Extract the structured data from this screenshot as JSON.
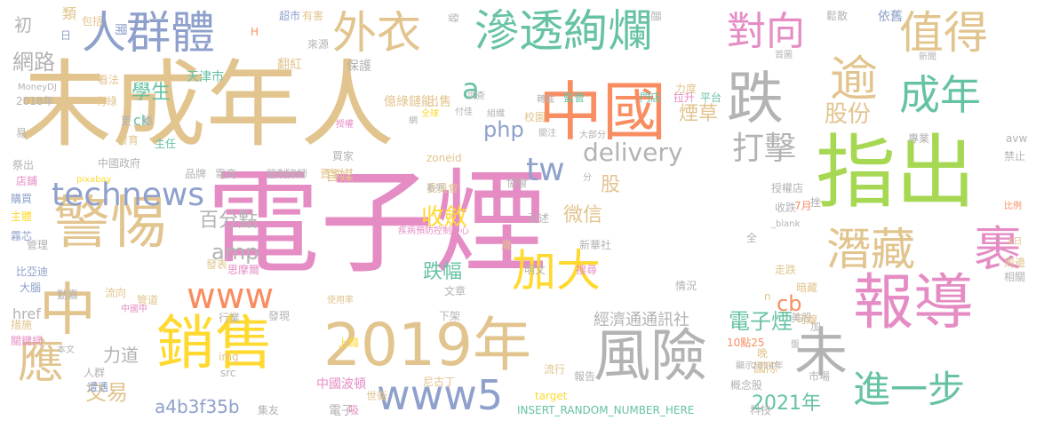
{
  "palette": {
    "pink": "#e58cc4",
    "tan": "#e2c48e",
    "green": "#66c2a5",
    "blue": "#8ea0cb",
    "orange": "#f98d62",
    "yellow": "#ffd92f",
    "lime": "#a7d854",
    "gray": "#b3b3b3"
  },
  "words": [
    "電子煙",
    "未成年人",
    "指出",
    "中國",
    "報導",
    "2019年",
    "銷售",
    "警惕",
    "人群體",
    "滲透絢爛",
    "外衣",
    "跌",
    "逾",
    "值得",
    "成年",
    "中",
    "應",
    "潛藏",
    "裹",
    "風險",
    "未",
    "進一步",
    "technews",
    "www",
    "www5",
    "加大",
    "對向",
    "打擊",
    "tw",
    "php",
    "delivery",
    "a",
    "amp",
    "cb",
    "微信",
    "收斂",
    "跌幅",
    "股份",
    "網路",
    "學生",
    "百分點",
    "經濟通通訊社",
    "電子煙",
    "交易",
    "a4b3f35b",
    "2021年",
    "力道",
    "煙草",
    "官媒",
    "股",
    "初",
    "href",
    "ck",
    "日",
    "類",
    "包括",
    "超市",
    "有害",
    "發",
    "題",
    "鬆散",
    "依舊",
    "開",
    "H",
    "來源",
    "看法",
    "天津市",
    "翻紅",
    "保護",
    "出售",
    "調查",
    "轉載",
    "監管",
    "門店",
    "首圖",
    "2018年",
    "有綠",
    "更",
    "極",
    "億綠鏈能",
    "全球",
    "付佳",
    "校園",
    "力度",
    "拉升",
    "平台",
    "新聞",
    "MoneyDJ",
    "易",
    "發育",
    "主任",
    "網",
    "組織",
    "關注",
    "大部分",
    "專業",
    "avw",
    "祭出",
    "中國政府",
    "品牌",
    "電商",
    "管制",
    "律師",
    "賣家",
    "zoneid",
    "委員會",
    "禁止",
    "店鋪",
    "pixabay",
    "系列",
    "協會",
    "授權店",
    "購買",
    "主體",
    "分",
    "收跌",
    "7月",
    "挫",
    "比例",
    "疾病預防控制中心",
    "引述",
    "_blank",
    "全",
    "霧芯",
    "管理",
    "歲",
    "新華社",
    "4日",
    "比亞迪",
    "大腦",
    "發表",
    "思摩爾",
    "明文",
    "搜尋",
    "走跌",
    "周邊",
    "相關",
    "勤嘉",
    "流向",
    "管道",
    "文章",
    "暗藏",
    "中國中",
    "使用率",
    "情況",
    "美股",
    "加",
    "措施",
    "行業",
    "發現",
    "下架",
    "可線",
    "關鍵詞",
    "本文",
    "上癮",
    "10點25",
    "晚",
    "盤",
    "人群",
    "img",
    "src",
    "流行",
    "報告",
    "顯示",
    "國際",
    "市場",
    "遭遇",
    "中國波頓",
    "尼古丁",
    "target",
    "2014年",
    "概念股",
    "世衛",
    "電子",
    "吸",
    "集友",
    "INSERT_RANDOM_NUMBER_HERE",
    "科技",
    "授權",
    "n",
    "買家"
  ]
}
